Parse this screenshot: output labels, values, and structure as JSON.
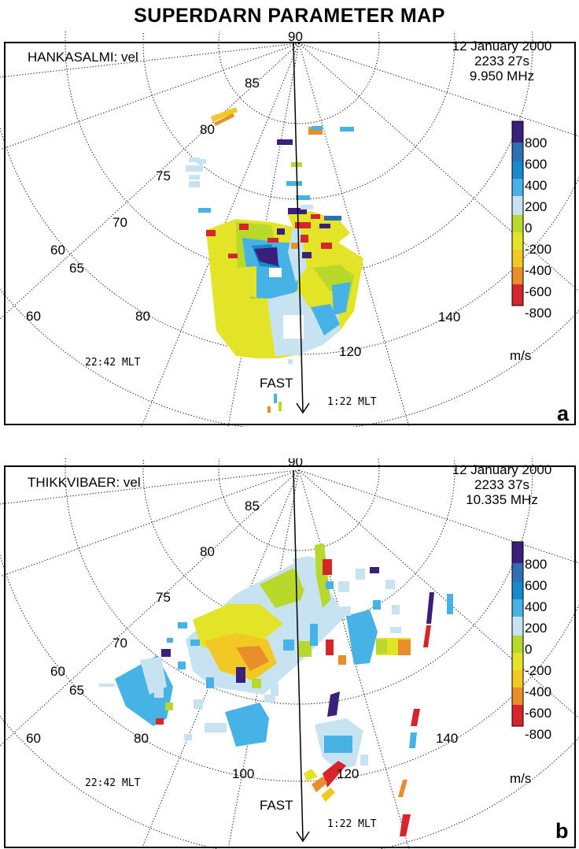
{
  "title": "SUPERDARN PARAMETER MAP",
  "colors": {
    "scale": [
      "#d7262b",
      "#e98f2a",
      "#f2c824",
      "#e3e327",
      "#b8d82c",
      "#c7e3f2",
      "#46b2e5",
      "#1789cf",
      "#2f6fb3",
      "#3a1f7c"
    ],
    "frame": "#000000",
    "grid": "#000000"
  },
  "panels": [
    {
      "id": "a",
      "station_label": "HANKASALMI: vel",
      "date": "12 January 2000",
      "time": "2233 27s",
      "freq": "9.950 MHz",
      "panel_letter": "a",
      "lat_labels": [
        "90",
        "85",
        "80",
        "75",
        "70",
        "65",
        "60",
        "60"
      ],
      "lon_labels": [
        "80",
        "120",
        "140"
      ],
      "mlt_left": "22:42 MLT",
      "mlt_right": "1:22 MLT",
      "track_label": "FAST",
      "scale_labels": [
        "800",
        "600",
        "400",
        "200",
        "0",
        "-200",
        "-400",
        "-600",
        "-800"
      ],
      "scale_unit": "m/s"
    },
    {
      "id": "b",
      "station_label": "THIKKVIBAER: vel",
      "date": "12 January 2000",
      "time": "2233 37s",
      "freq": "10.335 MHz",
      "panel_letter": "b",
      "lat_labels": [
        "90",
        "85",
        "80",
        "75",
        "70",
        "65",
        "60",
        "60"
      ],
      "lon_labels": [
        "80",
        "100",
        "120",
        "140"
      ],
      "mlt_left": "22:42 MLT",
      "mlt_right": "1:22 MLT",
      "track_label": "FAST",
      "scale_labels": [
        "800",
        "600",
        "400",
        "200",
        "0",
        "-200",
        "-400",
        "-600",
        "-800"
      ],
      "scale_unit": "m/s"
    }
  ]
}
